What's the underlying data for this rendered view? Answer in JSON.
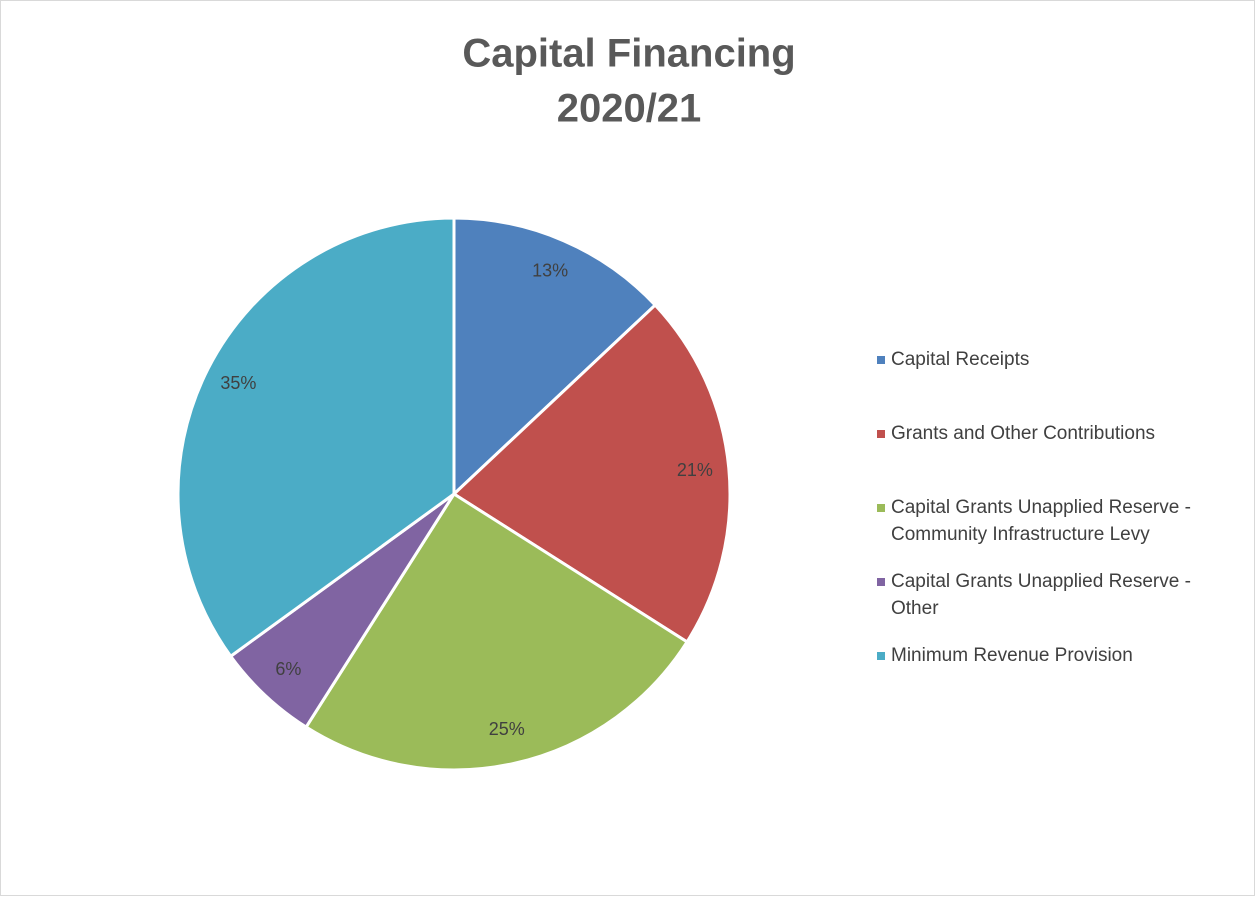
{
  "chart_data": {
    "type": "pie",
    "title": [
      "Capital Financing",
      "2020/21"
    ],
    "categories": [
      "Capital Receipts",
      "Grants and Other Contributions",
      "Capital Grants Unapplied Reserve - Community Infrastructure Levy",
      "Capital Grants Unapplied Reserve - Other",
      "Minimum Revenue Provision"
    ],
    "values": [
      13,
      21,
      25,
      6,
      35
    ],
    "value_labels": [
      "13%",
      "21%",
      "25%",
      "6%",
      "35%"
    ],
    "colors": [
      "#4f81bd",
      "#c0504d",
      "#9bbb59",
      "#8064a2",
      "#4bacc6"
    ],
    "legend": "right"
  }
}
